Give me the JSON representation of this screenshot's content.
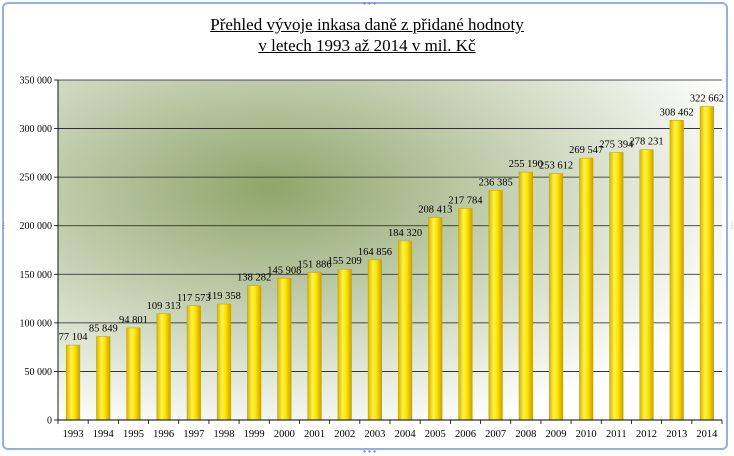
{
  "chart_data": {
    "type": "bar",
    "title_line1": "Přehled vývoje inkasa daně z přidané hodnoty",
    "title_line2": "v letech 1993 až 2014 v mil. Kč",
    "categories": [
      "1993",
      "1994",
      "1995",
      "1996",
      "1997",
      "1998",
      "1999",
      "2000",
      "2001",
      "2002",
      "2003",
      "2004",
      "2005",
      "2006",
      "2007",
      "2008",
      "2009",
      "2010",
      "2011",
      "2012",
      "2013",
      "2014"
    ],
    "values": [
      77104,
      85849,
      94801,
      109313,
      117573,
      119358,
      138282,
      145908,
      151886,
      155209,
      164856,
      184320,
      208413,
      217784,
      236385,
      255190,
      253612,
      269547,
      275394,
      278231,
      308462,
      322662
    ],
    "value_labels": [
      "77 104",
      "85 849",
      "94 801",
      "109 313",
      "117 573",
      "119 358",
      "138 282",
      "145 908",
      "151 886",
      "155 209",
      "164 856",
      "184 320",
      "208 413",
      "217 784",
      "236 385",
      "255 190",
      "253 612",
      "269 547",
      "275 394",
      "278 231",
      "308 462",
      "322 662"
    ],
    "ylim": [
      0,
      350000
    ],
    "yticks": [
      0,
      50000,
      100000,
      150000,
      200000,
      250000,
      300000,
      350000
    ],
    "ytick_labels": [
      "0",
      "50 000",
      "100 000",
      "150 000",
      "200 000",
      "250 000",
      "300 000",
      "350 000"
    ],
    "grid": true,
    "legend": "none",
    "bar_color": "#ffe600",
    "bar_edge_color": "#c9a800",
    "background_colors": [
      "#8fa56b",
      "#ffffff"
    ]
  }
}
